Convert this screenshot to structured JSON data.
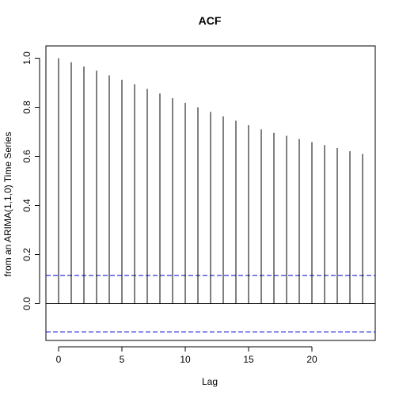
{
  "chart_data": {
    "type": "bar",
    "title": "ACF",
    "xlabel": "Lag",
    "ylabel": "from an ARIMA(1,1,0) Time Series",
    "xlim": [
      -1,
      25
    ],
    "ylim": [
      -0.15,
      1.05
    ],
    "x_ticks": [
      0,
      5,
      10,
      15,
      20
    ],
    "x_tick_labels": [
      "0",
      "5",
      "10",
      "15",
      "20"
    ],
    "y_ticks": [
      0.0,
      0.2,
      0.4,
      0.6,
      0.8,
      1.0
    ],
    "y_tick_labels": [
      "0.0",
      "0.2",
      "0.4",
      "0.6",
      "0.8",
      "1.0"
    ],
    "lags": [
      0,
      1,
      2,
      3,
      4,
      5,
      6,
      7,
      8,
      9,
      10,
      11,
      12,
      13,
      14,
      15,
      16,
      17,
      18,
      19,
      20,
      21,
      22,
      23,
      24
    ],
    "values": [
      1.0,
      0.984,
      0.966,
      0.949,
      0.93,
      0.912,
      0.894,
      0.875,
      0.856,
      0.837,
      0.818,
      0.8,
      0.781,
      0.763,
      0.745,
      0.727,
      0.71,
      0.696,
      0.684,
      0.671,
      0.658,
      0.646,
      0.634,
      0.621,
      0.61
    ],
    "confidence_bounds": [
      0.115,
      -0.115
    ],
    "grid": false,
    "colors": {
      "bars": "#000000",
      "zero_line": "#000000",
      "confidence": "#0000CC"
    }
  }
}
